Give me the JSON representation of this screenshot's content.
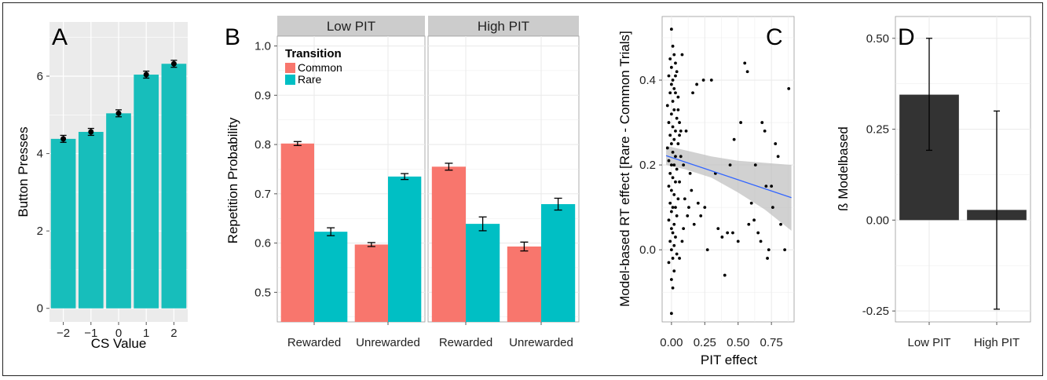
{
  "chart_data": [
    {
      "panel": "A",
      "type": "bar",
      "xlabel": "CS Value",
      "ylabel": "Button Presses",
      "categories": [
        "−2",
        "−1",
        "0",
        "1",
        "2"
      ],
      "values": [
        4.38,
        4.56,
        5.04,
        6.04,
        6.32
      ],
      "errors": [
        0.09,
        0.09,
        0.09,
        0.09,
        0.09
      ],
      "ylim": [
        -0.35,
        7.4
      ],
      "yticks": [
        "0",
        "2",
        "4",
        "6"
      ],
      "bar_color": "#17BEBB",
      "grid": true
    },
    {
      "panel": "B",
      "type": "bar",
      "ylabel": "Repetition Probability",
      "legend_title": "Transition",
      "legend_position": "top-left",
      "categories": [
        "Rewarded",
        "Unrewarded"
      ],
      "ylim": [
        0.44,
        1.02
      ],
      "yticks": [
        "0.5",
        "0.6",
        "0.7",
        "0.8",
        "0.9",
        "1.0"
      ],
      "facets": [
        {
          "label": "Low PIT",
          "series": [
            {
              "name": "Common",
              "values": [
                0.802,
                0.597
              ],
              "errors": [
                0.004,
                0.004
              ]
            },
            {
              "name": "Rare",
              "values": [
                0.623,
                0.735
              ],
              "errors": [
                0.008,
                0.006
              ]
            }
          ]
        },
        {
          "label": "High PIT",
          "series": [
            {
              "name": "Common",
              "values": [
                0.755,
                0.593
              ],
              "errors": [
                0.007,
                0.009
              ]
            },
            {
              "name": "Rare",
              "values": [
                0.639,
                0.679
              ],
              "errors": [
                0.014,
                0.012
              ]
            }
          ]
        }
      ],
      "colors": {
        "Common": "#F8766D",
        "Rare": "#00BFC4"
      },
      "grid": true
    },
    {
      "panel": "C",
      "type": "scatter",
      "xlabel": "PIT effect",
      "ylabel": "Model-based RT effect [Rare - Common Trials]",
      "xtick_labels": [
        "0.00",
        "0.25",
        "0.50",
        "0.75"
      ],
      "ytick_labels": [
        "0.0",
        "0.2",
        "0.4"
      ],
      "xlim": [
        -0.07,
        0.92
      ],
      "ylim": [
        -0.17,
        0.55
      ],
      "regression": {
        "x": [
          -0.04,
          0.9
        ],
        "y": [
          0.222,
          0.123
        ],
        "ci_x": [
          -0.04,
          0.1,
          0.3,
          0.5,
          0.7,
          0.9
        ],
        "ci_lower": [
          0.2,
          0.19,
          0.17,
          0.135,
          0.095,
          0.045
        ],
        "ci_upper": [
          0.245,
          0.235,
          0.22,
          0.21,
          0.205,
          0.2
        ]
      },
      "line_color": "#3366FF",
      "points": [
        [
          0.0,
          0.52
        ],
        [
          0.01,
          0.48
        ],
        [
          -0.01,
          0.45
        ],
        [
          0.02,
          0.46
        ],
        [
          0.0,
          0.43
        ],
        [
          0.03,
          0.44
        ],
        [
          -0.02,
          0.41
        ],
        [
          0.01,
          0.4
        ],
        [
          0.04,
          0.42
        ],
        [
          0.0,
          0.39
        ],
        [
          0.02,
          0.38
        ],
        [
          -0.01,
          0.37
        ],
        [
          0.03,
          0.37
        ],
        [
          0.05,
          0.36
        ],
        [
          0.01,
          0.35
        ],
        [
          -0.03,
          0.34
        ],
        [
          0.02,
          0.33
        ],
        [
          0.0,
          0.32
        ],
        [
          0.04,
          0.31
        ],
        [
          -0.02,
          0.3
        ],
        [
          0.01,
          0.29
        ],
        [
          0.03,
          0.28
        ],
        [
          0.06,
          0.27
        ],
        [
          -0.01,
          0.27
        ],
        [
          0.02,
          0.26
        ],
        [
          0.0,
          0.25
        ],
        [
          0.05,
          0.25
        ],
        [
          -0.03,
          0.24
        ],
        [
          0.01,
          0.23
        ],
        [
          0.03,
          0.22
        ],
        [
          0.07,
          0.22
        ],
        [
          -0.02,
          0.21
        ],
        [
          0.0,
          0.2
        ],
        [
          0.02,
          0.2
        ],
        [
          0.04,
          0.19
        ],
        [
          -0.01,
          0.18
        ],
        [
          0.01,
          0.17
        ],
        [
          0.03,
          0.16
        ],
        [
          0.06,
          0.16
        ],
        [
          -0.02,
          0.15
        ],
        [
          0.0,
          0.14
        ],
        [
          0.02,
          0.13
        ],
        [
          0.05,
          0.12
        ],
        [
          -0.01,
          0.11
        ],
        [
          0.01,
          0.1
        ],
        [
          0.03,
          0.1
        ],
        [
          0.0,
          0.09
        ],
        [
          0.04,
          0.08
        ],
        [
          -0.02,
          0.07
        ],
        [
          0.02,
          0.06
        ],
        [
          0.0,
          0.05
        ],
        [
          0.01,
          0.04
        ],
        [
          0.03,
          0.03
        ],
        [
          -0.01,
          0.02
        ],
        [
          0.02,
          0.01
        ],
        [
          0.0,
          0.0
        ],
        [
          0.04,
          -0.01
        ],
        [
          0.01,
          -0.02
        ],
        [
          -0.02,
          -0.03
        ],
        [
          0.02,
          -0.05
        ],
        [
          0.0,
          -0.07
        ],
        [
          0.01,
          -0.09
        ],
        [
          0.0,
          -0.15
        ],
        [
          0.03,
          0.41
        ],
        [
          0.05,
          0.33
        ],
        [
          0.06,
          0.3
        ],
        [
          0.08,
          0.46
        ],
        [
          0.07,
          0.28
        ],
        [
          0.09,
          0.2
        ],
        [
          0.1,
          0.12
        ],
        [
          0.12,
          0.08
        ],
        [
          0.08,
          0.02
        ],
        [
          0.06,
          -0.02
        ],
        [
          0.09,
          0.05
        ],
        [
          0.11,
          0.28
        ],
        [
          0.14,
          0.18
        ],
        [
          0.13,
          0.1
        ],
        [
          0.15,
          0.14
        ],
        [
          0.17,
          0.06
        ],
        [
          0.2,
          0.11
        ],
        [
          0.16,
          0.37
        ],
        [
          0.22,
          0.08
        ],
        [
          0.24,
          0.4
        ],
        [
          0.25,
          0.1
        ],
        [
          0.27,
          0.0
        ],
        [
          0.3,
          0.4
        ],
        [
          0.33,
          0.18
        ],
        [
          0.35,
          0.05
        ],
        [
          0.38,
          0.03
        ],
        [
          0.4,
          -0.06
        ],
        [
          0.42,
          0.04
        ],
        [
          0.44,
          0.2
        ],
        [
          0.46,
          0.04
        ],
        [
          0.5,
          0.02
        ],
        [
          0.52,
          0.3
        ],
        [
          0.55,
          0.44
        ],
        [
          0.57,
          0.42
        ],
        [
          0.6,
          0.11
        ],
        [
          0.62,
          0.07
        ],
        [
          0.63,
          0.2
        ],
        [
          0.65,
          0.04
        ],
        [
          0.68,
          0.3
        ],
        [
          0.7,
          0.28
        ],
        [
          0.71,
          0.15
        ],
        [
          0.72,
          -0.02
        ],
        [
          0.73,
          0.0
        ],
        [
          0.75,
          0.15
        ],
        [
          0.76,
          0.1
        ],
        [
          0.78,
          0.25
        ],
        [
          0.8,
          0.22
        ],
        [
          0.82,
          0.06
        ],
        [
          0.85,
          0.0
        ],
        [
          0.88,
          0.38
        ],
        [
          0.58,
          0.06
        ],
        [
          0.67,
          0.02
        ],
        [
          0.47,
          0.26
        ],
        [
          0.19,
          0.39
        ]
      ],
      "point_color": "#000000",
      "grid": true
    },
    {
      "panel": "D",
      "type": "bar",
      "ylabel": "ß Modelbased",
      "categories": [
        "Low PIT",
        "High PIT"
      ],
      "values": [
        0.345,
        0.028
      ],
      "error_low": [
        0.192,
        -0.245
      ],
      "error_high": [
        0.5,
        0.3
      ],
      "yticks": [
        "-0.25",
        "0.00",
        "0.25",
        "0.50"
      ],
      "ylim": [
        -0.28,
        0.56
      ],
      "bar_color": "#333333",
      "grid": true
    }
  ]
}
